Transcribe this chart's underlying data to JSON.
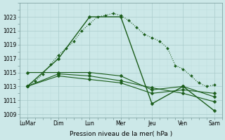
{
  "xlabel": "Pression niveau de la mer( hPa )",
  "bg_color": "#cce8e8",
  "grid_major_color": "#aacccc",
  "grid_minor_color": "#bbdddd",
  "line_color": "#1a5c1a",
  "ylim": [
    1008.5,
    1025.0
  ],
  "yticks": [
    1009,
    1011,
    1013,
    1015,
    1017,
    1019,
    1021,
    1023
  ],
  "xtick_labels": [
    "LuMar",
    "Dim",
    "Lun",
    "Mer",
    "Jeu",
    "Ven",
    "Sam"
  ],
  "xtick_positions": [
    0,
    4,
    8,
    12,
    16,
    20,
    24
  ],
  "xlim": [
    -1,
    25
  ],
  "series": [
    {
      "name": "dotted_dense",
      "x": [
        0,
        1,
        2,
        3,
        4,
        5,
        6,
        7,
        8,
        9,
        10,
        11,
        12,
        13,
        14,
        15,
        16,
        17,
        18,
        19,
        20,
        21,
        22,
        23,
        24
      ],
      "y": [
        1013.0,
        1013.7,
        1014.8,
        1016.2,
        1017.5,
        1018.5,
        1019.5,
        1021.0,
        1022.0,
        1023.0,
        1023.2,
        1023.5,
        1023.2,
        1022.5,
        1021.5,
        1020.5,
        1020.0,
        1019.5,
        1018.5,
        1016.0,
        1015.5,
        1014.5,
        1013.5,
        1013.0,
        1013.2
      ],
      "style": "dotted",
      "marker": "D",
      "markersize": 2.0,
      "linewidth": 0.8
    },
    {
      "name": "solid_main",
      "x": [
        0,
        4,
        8,
        12,
        16,
        20,
        24
      ],
      "y": [
        1013.0,
        1017.0,
        1023.0,
        1023.0,
        1010.5,
        1013.0,
        1009.5
      ],
      "style": "solid",
      "marker": "D",
      "markersize": 2.5,
      "linewidth": 1.0
    },
    {
      "name": "solid_flat1",
      "x": [
        0,
        4,
        8,
        12,
        16,
        20,
        24
      ],
      "y": [
        1015.0,
        1015.0,
        1015.0,
        1014.5,
        1012.5,
        1013.0,
        1011.5
      ],
      "style": "solid",
      "marker": "D",
      "markersize": 2.5,
      "linewidth": 0.8
    },
    {
      "name": "solid_flat2",
      "x": [
        0,
        4,
        8,
        12,
        16,
        20,
        24
      ],
      "y": [
        1013.0,
        1014.5,
        1014.0,
        1013.5,
        1012.0,
        1012.5,
        1012.0
      ],
      "style": "solid",
      "marker": "D",
      "markersize": 2.5,
      "linewidth": 0.8
    },
    {
      "name": "solid_decline",
      "x": [
        0,
        4,
        8,
        12,
        16,
        20,
        24
      ],
      "y": [
        1013.0,
        1014.8,
        1014.5,
        1013.8,
        1012.8,
        1012.0,
        1010.8
      ],
      "style": "solid",
      "marker": "D",
      "markersize": 2.5,
      "linewidth": 0.8
    }
  ]
}
